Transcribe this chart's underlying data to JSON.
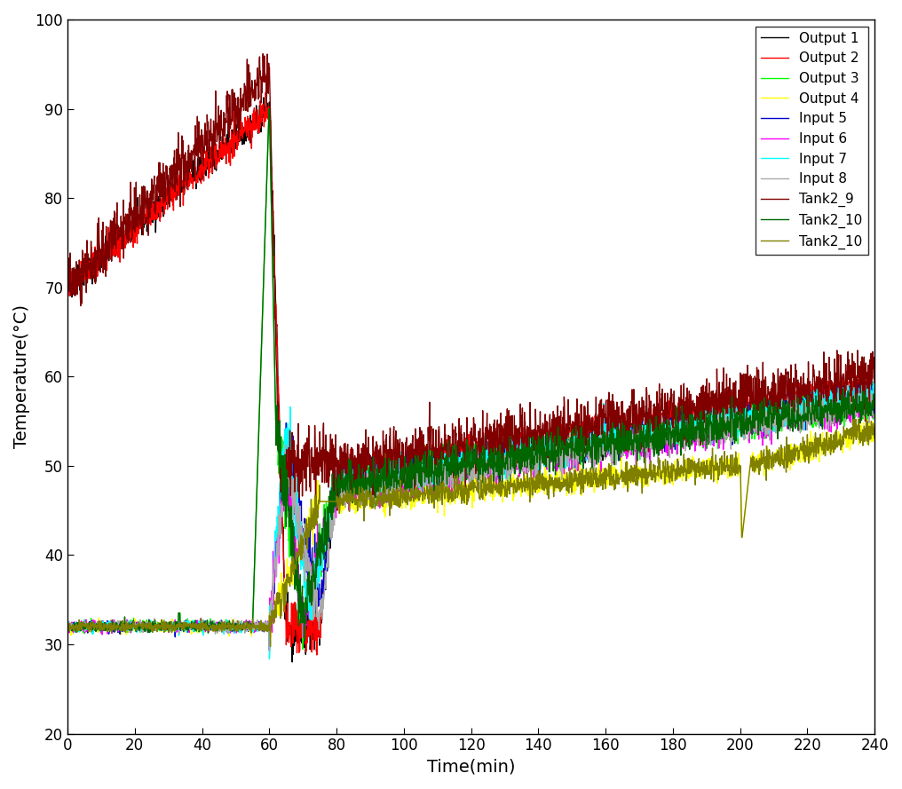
{
  "title": "",
  "xlabel": "Time(min)",
  "ylabel": "Temperature(°C)",
  "xlim": [
    0,
    240
  ],
  "ylim": [
    20,
    100
  ],
  "xticks": [
    0,
    20,
    40,
    60,
    80,
    100,
    120,
    140,
    160,
    180,
    200,
    220,
    240
  ],
  "yticks": [
    20,
    30,
    40,
    50,
    60,
    70,
    80,
    90,
    100
  ],
  "series": [
    {
      "label": "Output 1",
      "color": "#000000"
    },
    {
      "label": "Output 2",
      "color": "#FF0000"
    },
    {
      "label": "Output 3",
      "color": "#00FF00"
    },
    {
      "label": "Output 4",
      "color": "#FFFF00"
    },
    {
      "label": "Input 5",
      "color": "#0000CC"
    },
    {
      "label": "Input 6",
      "color": "#FF00FF"
    },
    {
      "label": "Input 7",
      "color": "#00FFFF"
    },
    {
      "label": "Input 8",
      "color": "#AAAAAA"
    },
    {
      "label": "Tank2_9",
      "color": "#800000"
    },
    {
      "label": "Tank2_10",
      "color": "#006600"
    },
    {
      "label": "Tank2_10",
      "color": "#808000"
    }
  ],
  "legend_loc": "upper right",
  "linewidth": 1.0,
  "background_color": "#FFFFFF"
}
